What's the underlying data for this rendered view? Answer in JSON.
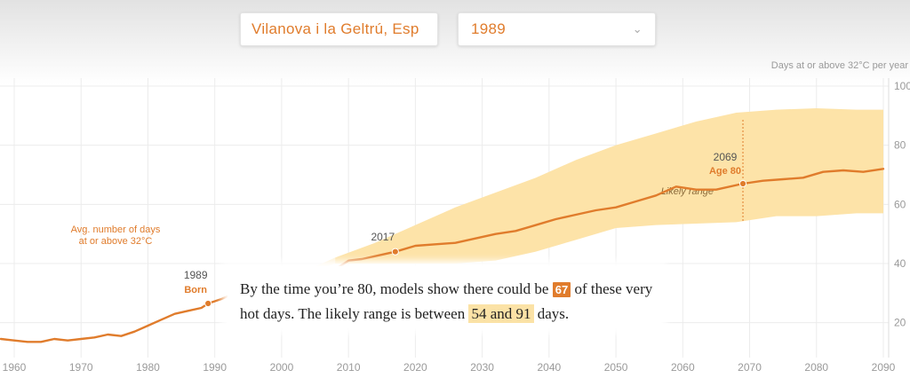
{
  "controls": {
    "location_value": "Vilanova i la Geltrú, Esp",
    "year_value": "1989",
    "year_chevron_icon": "chevron-down-icon"
  },
  "colors": {
    "accent": "#e07c2c",
    "band": "#fde3a8",
    "band_light": "#fdf0d3",
    "axis_text": "#9a9a9a",
    "grid": "#ececec"
  },
  "annotations": {
    "avg_label_line1": "Avg. number of days",
    "avg_label_line2": "at or above 32°C",
    "born_year": "1989",
    "born_label": "Born",
    "now_year": "2017",
    "age_year": "2069",
    "age_label": "Age 80",
    "likely_range": "Likely range"
  },
  "callout": {
    "text_before": "By the time you’re 80, models show there could be",
    "value": "67",
    "text_mid": "of these very hot days. The likely range is between",
    "range": "54 and 91",
    "text_after": "days."
  },
  "chart_data": {
    "type": "area",
    "ylabel": "Days at or above 32°C per year",
    "xlim": [
      1958,
      2092
    ],
    "ylim": [
      5,
      105
    ],
    "x_ticks": [
      1960,
      1970,
      1980,
      1990,
      2000,
      2010,
      2020,
      2030,
      2040,
      2050,
      2060,
      2070,
      2080,
      2090
    ],
    "y_ticks": [
      20,
      40,
      60,
      80,
      100
    ],
    "grid": true,
    "series": [
      {
        "values": [
          [
            1958,
            14.5
          ],
          [
            1960,
            14
          ],
          [
            1962,
            13.5
          ],
          [
            1964,
            13.5
          ],
          [
            1966,
            14.5
          ],
          [
            1968,
            14
          ],
          [
            1970,
            14.5
          ],
          [
            1972,
            15
          ],
          [
            1974,
            16
          ],
          [
            1976,
            15.5
          ],
          [
            1978,
            17
          ],
          [
            1980,
            19
          ],
          [
            1982,
            21
          ],
          [
            1984,
            23
          ],
          [
            1986,
            24
          ],
          [
            1988,
            25
          ],
          [
            1989,
            26.5
          ],
          [
            1991,
            28
          ],
          [
            1993,
            30
          ],
          [
            1995,
            31
          ],
          [
            1997,
            31.5
          ],
          [
            2000,
            33
          ],
          [
            2003,
            34
          ],
          [
            2006,
            36
          ],
          [
            2008,
            38
          ],
          [
            2010,
            41
          ],
          [
            2012,
            41.5
          ],
          [
            2014,
            42.5
          ],
          [
            2017,
            44
          ],
          [
            2020,
            46
          ],
          [
            2023,
            46.5
          ],
          [
            2026,
            47
          ],
          [
            2029,
            48.5
          ],
          [
            2032,
            50
          ],
          [
            2035,
            51
          ],
          [
            2038,
            53
          ],
          [
            2041,
            55
          ],
          [
            2044,
            56.5
          ],
          [
            2047,
            58
          ],
          [
            2050,
            59
          ],
          [
            2053,
            61
          ],
          [
            2056,
            63
          ],
          [
            2059,
            66
          ],
          [
            2062,
            65
          ],
          [
            2065,
            65
          ],
          [
            2069,
            67
          ],
          [
            2072,
            68
          ],
          [
            2075,
            68.5
          ],
          [
            2078,
            69
          ],
          [
            2081,
            71
          ],
          [
            2084,
            71.5
          ],
          [
            2087,
            71
          ],
          [
            2090,
            72
          ]
        ]
      }
    ],
    "likely_range": {
      "x": [
        2008,
        2014,
        2020,
        2026,
        2032,
        2038,
        2044,
        2050,
        2056,
        2062,
        2068,
        2074,
        2080,
        2086,
        2090
      ],
      "low": [
        40,
        40,
        40,
        40,
        41,
        44,
        48,
        52,
        53,
        53.5,
        54,
        56,
        56,
        57,
        57
      ],
      "high": [
        42,
        47,
        53,
        59,
        64,
        69,
        75,
        80,
        84,
        88,
        91,
        92,
        92.5,
        92,
        92
      ]
    },
    "markers": [
      {
        "x": 1989,
        "y": 26.5
      },
      {
        "x": 2017,
        "y": 44
      },
      {
        "x": 2069,
        "y": 67
      }
    ]
  }
}
